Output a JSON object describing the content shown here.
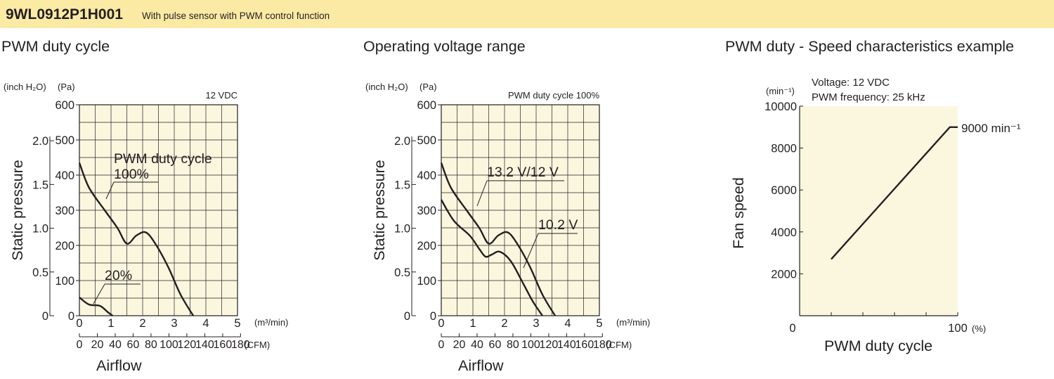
{
  "header": {
    "model": "9WL0912P1H001",
    "description": "With pulse sensor with PWM control function"
  },
  "colors": {
    "banner": "#fbeaa4",
    "plot_bg": "#fbf7df",
    "ink": "#231f20"
  },
  "chart_data": [
    {
      "type": "line",
      "title": "PWM duty cycle",
      "condition": "12 VDC",
      "xlabel": "Airflow",
      "ylabel": "Static pressure",
      "x_unit": "(m³/min)",
      "x2_unit": "(CFM)",
      "y_unit": "(Pa)",
      "y2_unit": "(inch H₂O)",
      "xlim": [
        0,
        5
      ],
      "ylim": [
        0,
        600
      ],
      "x_ticks": [
        "0",
        "1",
        "2",
        "3",
        "4",
        "5"
      ],
      "y_ticks": [
        "0",
        "100",
        "200",
        "300",
        "400",
        "500",
        "600"
      ],
      "x2_ticks": [
        "0",
        "20",
        "40",
        "60",
        "80",
        "100",
        "120",
        "140",
        "160",
        "180"
      ],
      "y2_ticks": [
        "0",
        "0.5",
        "1.0",
        "1.5",
        "2.0"
      ],
      "series": [
        {
          "name": "100%",
          "points": [
            [
              0,
              435
            ],
            [
              0.3,
              365
            ],
            [
              0.8,
              300
            ],
            [
              1.2,
              250
            ],
            [
              1.5,
              205
            ],
            [
              1.8,
              228
            ],
            [
              2.1,
              237
            ],
            [
              2.4,
              205
            ],
            [
              2.8,
              140
            ],
            [
              3.2,
              60
            ],
            [
              3.6,
              0
            ]
          ]
        },
        {
          "name": "20%",
          "points": [
            [
              0,
              52
            ],
            [
              0.3,
              32
            ],
            [
              0.65,
              28
            ],
            [
              0.9,
              10
            ],
            [
              1.05,
              0
            ]
          ]
        }
      ],
      "annotations": [
        "PWM duty cycle",
        "100%",
        "20%"
      ]
    },
    {
      "type": "line",
      "title": "Operating voltage range",
      "condition": "PWM duty cycle 100%",
      "xlabel": "Airflow",
      "ylabel": "Static pressure",
      "x_unit": "(m³/min)",
      "x2_unit": "(CFM)",
      "y_unit": "(Pa)",
      "y2_unit": "(inch H₂O)",
      "xlim": [
        0,
        5
      ],
      "ylim": [
        0,
        600
      ],
      "x_ticks": [
        "0",
        "1",
        "2",
        "3",
        "4",
        "5"
      ],
      "y_ticks": [
        "0",
        "100",
        "200",
        "300",
        "400",
        "500",
        "600"
      ],
      "x2_ticks": [
        "0",
        "20",
        "40",
        "60",
        "80",
        "100",
        "120",
        "140",
        "160",
        "180"
      ],
      "y2_ticks": [
        "0",
        "0.5",
        "1.0",
        "1.5",
        "2.0"
      ],
      "series": [
        {
          "name": "13.2 V/12 V",
          "points": [
            [
              0,
              435
            ],
            [
              0.3,
              365
            ],
            [
              0.8,
              300
            ],
            [
              1.2,
              250
            ],
            [
              1.5,
              205
            ],
            [
              1.8,
              228
            ],
            [
              2.1,
              237
            ],
            [
              2.4,
              205
            ],
            [
              2.8,
              140
            ],
            [
              3.2,
              60
            ],
            [
              3.6,
              0
            ]
          ]
        },
        {
          "name": "10.2 V",
          "points": [
            [
              0,
              330
            ],
            [
              0.4,
              270
            ],
            [
              0.9,
              228
            ],
            [
              1.2,
              190
            ],
            [
              1.4,
              168
            ],
            [
              1.6,
              174
            ],
            [
              1.85,
              182
            ],
            [
              2.2,
              155
            ],
            [
              2.6,
              90
            ],
            [
              2.9,
              40
            ],
            [
              3.2,
              0
            ]
          ]
        }
      ],
      "annotations": [
        "13.2 V/12 V",
        "10.2 V"
      ]
    },
    {
      "type": "line",
      "title": "PWM duty - Speed characteristics example",
      "conditions": [
        "Voltage: 12 VDC",
        "PWM frequency: 25 kHz"
      ],
      "xlabel": "PWM duty cycle",
      "ylabel": "Fan speed",
      "x_unit": "(%)",
      "y_unit": "(min⁻¹)",
      "xlim": [
        0,
        100
      ],
      "ylim": [
        0,
        10000
      ],
      "x_ticks": [
        "0",
        "100"
      ],
      "y_ticks": [
        "2000",
        "4000",
        "6000",
        "8000",
        "10000"
      ],
      "series": [
        {
          "name": "",
          "points": [
            [
              20,
              2700
            ],
            [
              95,
              9000
            ],
            [
              100,
              9000
            ]
          ]
        }
      ],
      "annotations": [
        "9000 min⁻¹"
      ]
    }
  ]
}
